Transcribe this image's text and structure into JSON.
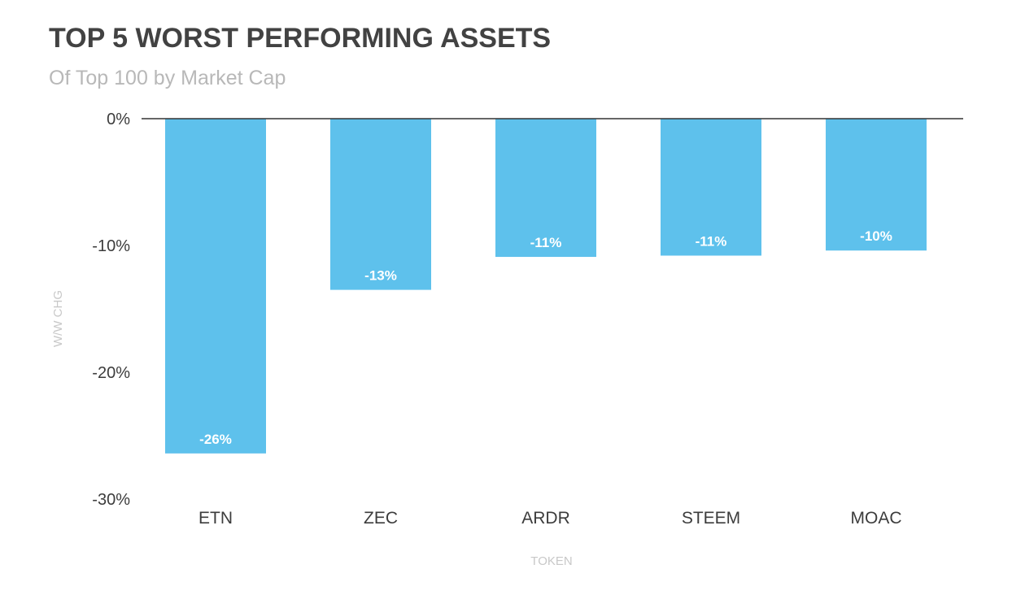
{
  "chart_data": {
    "type": "bar",
    "title": "TOP 5 WORST PERFORMING ASSETS",
    "subtitle": "Of Top 100 by Market Cap",
    "xlabel": "TOKEN",
    "ylabel": "W/W CHG",
    "categories": [
      "ETN",
      "ZEC",
      "ARDR",
      "STEEM",
      "MOAC"
    ],
    "values": [
      -26.4,
      -13.5,
      -10.9,
      -10.8,
      -10.4
    ],
    "data_labels": [
      "-26%",
      "-13%",
      "-11%",
      "-11%",
      "-10%"
    ],
    "ylim": [
      -30,
      0
    ],
    "yticks": [
      0,
      -10,
      -20,
      -30
    ],
    "ytick_labels": [
      "0%",
      "-10%",
      "-20%",
      "-30%"
    ],
    "bar_color": "#5ec1ec",
    "grid": false,
    "legend": "none"
  }
}
